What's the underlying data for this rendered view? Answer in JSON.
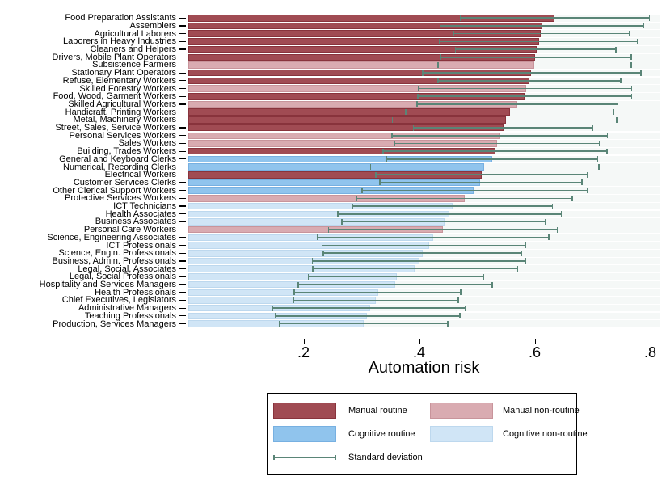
{
  "chart_data": {
    "type": "bar",
    "orientation": "horizontal",
    "xlabel": "Automation risk",
    "x_ticks": [
      {
        "value": 0.2,
        "label": ".2"
      },
      {
        "value": 0.4,
        "label": ".4"
      },
      {
        "value": 0.6,
        "label": ".6"
      },
      {
        "value": 0.8,
        "label": ".8"
      }
    ],
    "xlim": [
      0,
      0.815
    ],
    "grid": "faint horizontal row stripes",
    "legend_position": "bottom-center boxed",
    "rows": [
      {
        "label": "Food Preparation Assistants",
        "group": "manual_routine",
        "value": 0.634,
        "sd_low": 0.47,
        "sd_high": 0.8
      },
      {
        "label": "Assemblers",
        "group": "manual_routine",
        "value": 0.613,
        "sd_low": 0.435,
        "sd_high": 0.79
      },
      {
        "label": "Agricultural Laborers",
        "group": "manual_routine",
        "value": 0.611,
        "sd_low": 0.458,
        "sd_high": 0.765
      },
      {
        "label": "Laborers in Heavy Industries",
        "group": "manual_routine",
        "value": 0.607,
        "sd_low": 0.434,
        "sd_high": 0.779
      },
      {
        "label": "Cleaners and Helpers",
        "group": "manual_routine",
        "value": 0.603,
        "sd_low": 0.462,
        "sd_high": 0.742
      },
      {
        "label": "Drivers, Mobile Plant Operators",
        "group": "manual_routine",
        "value": 0.601,
        "sd_low": 0.436,
        "sd_high": 0.768
      },
      {
        "label": "Subsistence Farmers",
        "group": "manual_nonroutine",
        "value": 0.599,
        "sd_low": 0.432,
        "sd_high": 0.768
      },
      {
        "label": "Stationary Plant Operators",
        "group": "manual_routine",
        "value": 0.594,
        "sd_low": 0.405,
        "sd_high": 0.785
      },
      {
        "label": "Refuse, Elementary Workers",
        "group": "manual_routine",
        "value": 0.591,
        "sd_low": 0.432,
        "sd_high": 0.75
      },
      {
        "label": "Skilled Forestry Workers",
        "group": "manual_nonroutine",
        "value": 0.585,
        "sd_low": 0.398,
        "sd_high": 0.769
      },
      {
        "label": "Food, Wood, Garment Workers",
        "group": "manual_routine",
        "value": 0.583,
        "sd_low": 0.397,
        "sd_high": 0.769
      },
      {
        "label": "Skilled Agricultural Workers",
        "group": "manual_nonroutine",
        "value": 0.57,
        "sd_low": 0.395,
        "sd_high": 0.745
      },
      {
        "label": "Handicraft, Printing Workers",
        "group": "manual_routine",
        "value": 0.557,
        "sd_low": 0.376,
        "sd_high": 0.738
      },
      {
        "label": "Metal, Machinery Workers",
        "group": "manual_routine",
        "value": 0.551,
        "sd_low": 0.353,
        "sd_high": 0.743
      },
      {
        "label": "Street, Sales, Service Workers",
        "group": "manual_routine",
        "value": 0.546,
        "sd_low": 0.389,
        "sd_high": 0.702
      },
      {
        "label": "Personal Services Workers",
        "group": "manual_nonroutine",
        "value": 0.54,
        "sd_low": 0.352,
        "sd_high": 0.727
      },
      {
        "label": "Sales Workers",
        "group": "manual_nonroutine",
        "value": 0.535,
        "sd_low": 0.356,
        "sd_high": 0.713
      },
      {
        "label": "Building, Trades Workers",
        "group": "manual_routine",
        "value": 0.532,
        "sd_low": 0.337,
        "sd_high": 0.726
      },
      {
        "label": "General and Keyboard Clerks",
        "group": "cognitive_routine",
        "value": 0.527,
        "sd_low": 0.343,
        "sd_high": 0.71
      },
      {
        "label": "Numerical, Recording Clerks",
        "group": "cognitive_routine",
        "value": 0.513,
        "sd_low": 0.315,
        "sd_high": 0.712
      },
      {
        "label": "Electrical Workers",
        "group": "manual_routine",
        "value": 0.509,
        "sd_low": 0.324,
        "sd_high": 0.693
      },
      {
        "label": "Customer Services Clerks",
        "group": "cognitive_routine",
        "value": 0.506,
        "sd_low": 0.331,
        "sd_high": 0.683
      },
      {
        "label": "Other Clerical Support Workers",
        "group": "cognitive_routine",
        "value": 0.495,
        "sd_low": 0.3,
        "sd_high": 0.693
      },
      {
        "label": "Protective Services Workers",
        "group": "manual_nonroutine",
        "value": 0.479,
        "sd_low": 0.291,
        "sd_high": 0.666
      },
      {
        "label": "ICT Technicians",
        "group": "cognitive_nonroutine",
        "value": 0.458,
        "sd_low": 0.284,
        "sd_high": 0.632
      },
      {
        "label": "Health Associates",
        "group": "cognitive_nonroutine",
        "value": 0.453,
        "sd_low": 0.258,
        "sd_high": 0.647
      },
      {
        "label": "Business Associates",
        "group": "cognitive_nonroutine",
        "value": 0.444,
        "sd_low": 0.265,
        "sd_high": 0.62
      },
      {
        "label": "Personal Care Workers",
        "group": "manual_nonroutine",
        "value": 0.441,
        "sd_low": 0.242,
        "sd_high": 0.64
      },
      {
        "label": "Science, Engineering Associates",
        "group": "cognitive_nonroutine",
        "value": 0.425,
        "sd_low": 0.223,
        "sd_high": 0.626
      },
      {
        "label": "ICT Professionals",
        "group": "cognitive_nonroutine",
        "value": 0.417,
        "sd_low": 0.231,
        "sd_high": 0.585
      },
      {
        "label": "Science, Engin. Professionals",
        "group": "cognitive_nonroutine",
        "value": 0.406,
        "sd_low": 0.233,
        "sd_high": 0.578
      },
      {
        "label": "Business, Admin. Professionals",
        "group": "cognitive_nonroutine",
        "value": 0.401,
        "sd_low": 0.214,
        "sd_high": 0.586
      },
      {
        "label": "Legal, Social, Associates",
        "group": "cognitive_nonroutine",
        "value": 0.393,
        "sd_low": 0.215,
        "sd_high": 0.572
      },
      {
        "label": "Legal, Social Professionals",
        "group": "cognitive_nonroutine",
        "value": 0.361,
        "sd_low": 0.207,
        "sd_high": 0.513
      },
      {
        "label": "Hospitality and Services Managers",
        "group": "cognitive_nonroutine",
        "value": 0.359,
        "sd_low": 0.19,
        "sd_high": 0.528
      },
      {
        "label": "Health Professionals",
        "group": "cognitive_nonroutine",
        "value": 0.329,
        "sd_low": 0.183,
        "sd_high": 0.473
      },
      {
        "label": "Chief Executives, Legislators",
        "group": "cognitive_nonroutine",
        "value": 0.325,
        "sd_low": 0.182,
        "sd_high": 0.469
      },
      {
        "label": "Administrative Managers",
        "group": "cognitive_nonroutine",
        "value": 0.315,
        "sd_low": 0.145,
        "sd_high": 0.481
      },
      {
        "label": "Teaching Professionals",
        "group": "cognitive_nonroutine",
        "value": 0.31,
        "sd_low": 0.15,
        "sd_high": 0.472
      },
      {
        "label": "Production, Services Managers",
        "group": "cognitive_nonroutine",
        "value": 0.304,
        "sd_low": 0.157,
        "sd_high": 0.451
      }
    ],
    "colors": {
      "manual_routine": {
        "fill": "#a04b53",
        "border": "#88333c"
      },
      "manual_nonroutine": {
        "fill": "#d9abb1",
        "border": "#c8949b"
      },
      "cognitive_routine": {
        "fill": "#90c4ed",
        "border": "#77b0e1"
      },
      "cognitive_nonroutine": {
        "fill": "#d0e5f6",
        "border": "#bdd8ee"
      },
      "sd_line": "#5a8577",
      "axis": "#000000",
      "row_stripe": "#edf3f0"
    },
    "legend": {
      "items": [
        {
          "key": "manual_routine",
          "label": "Manual routine"
        },
        {
          "key": "manual_nonroutine",
          "label": "Manual non-routine"
        },
        {
          "key": "cognitive_routine",
          "label": "Cognitive routine"
        },
        {
          "key": "cognitive_nonroutine",
          "label": "Cognitive non-routine"
        },
        {
          "key": "sd",
          "label": "Standard deviation"
        }
      ]
    }
  }
}
